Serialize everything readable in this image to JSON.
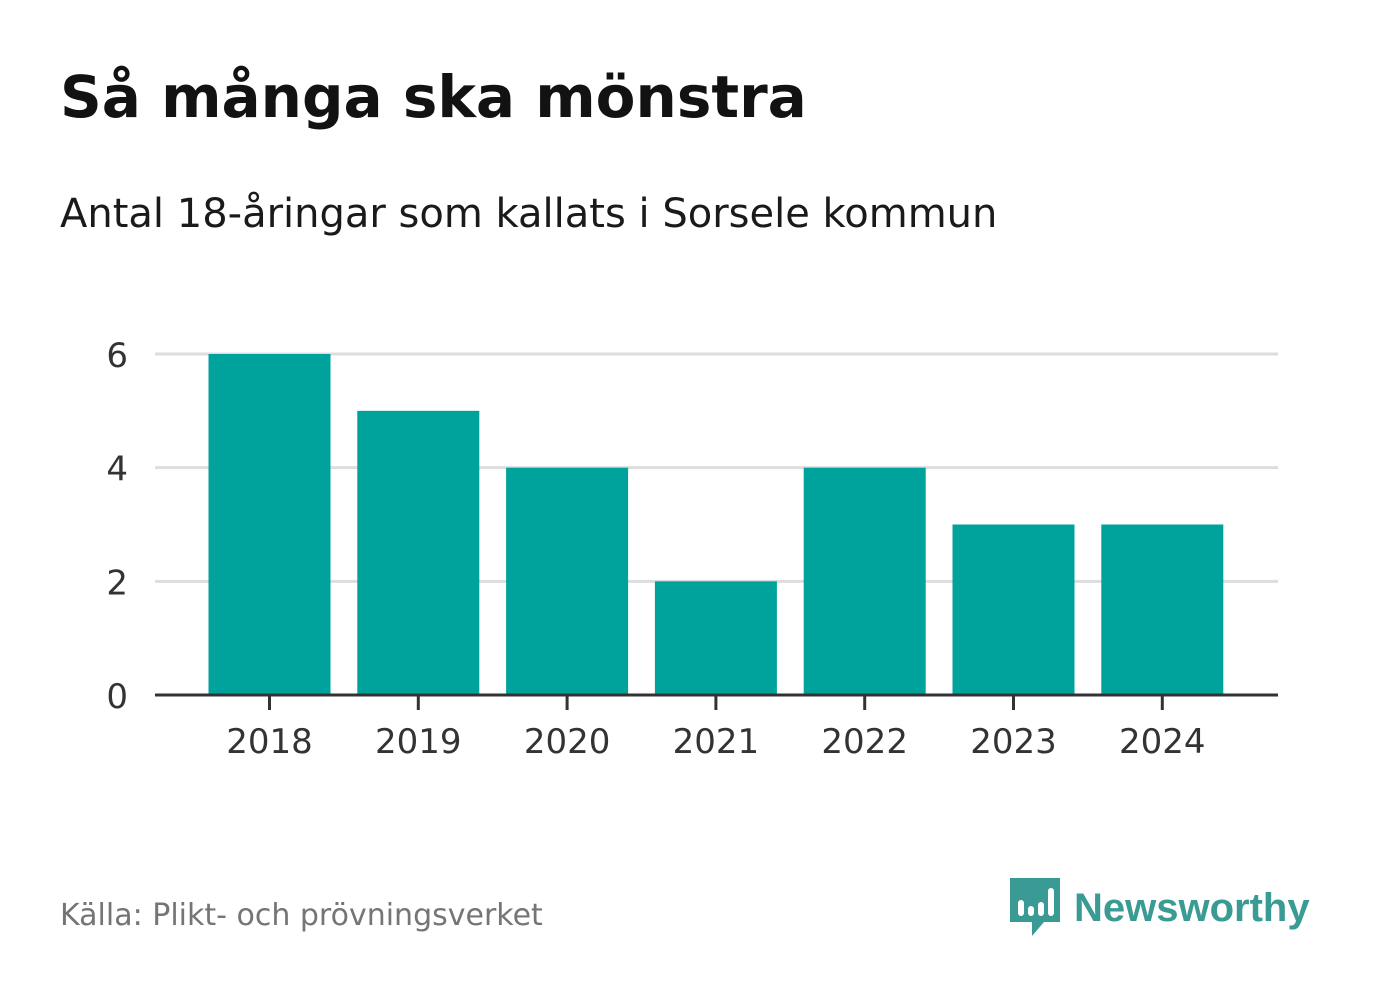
{
  "title": "Så många ska mönstra",
  "subtitle": "Antal 18-åringar som kallats i Sorsele kommun",
  "source": "Källa: Plikt- och prövningsverket",
  "brand": {
    "name": "Newsworthy",
    "icon": "newsworthy-logo-icon",
    "color": "#3a9a94"
  },
  "colors": {
    "bar": "#00a39b",
    "grid": "#dddddd",
    "axis": "#333333",
    "tick_text": "#333333"
  },
  "chart_data": {
    "type": "bar",
    "title": "Så många ska mönstra",
    "subtitle": "Antal 18-åringar som kallats i Sorsele kommun",
    "categories": [
      "2018",
      "2019",
      "2020",
      "2021",
      "2022",
      "2023",
      "2024"
    ],
    "values": [
      6,
      5,
      4,
      2,
      4,
      3,
      3
    ],
    "xlabel": "",
    "ylabel": "",
    "ylim": [
      0,
      6
    ],
    "yticks": [
      0,
      2,
      4,
      6
    ],
    "ytick_labels": [
      "0",
      "2",
      "4",
      "6"
    ],
    "grid": true,
    "legend": "none"
  }
}
